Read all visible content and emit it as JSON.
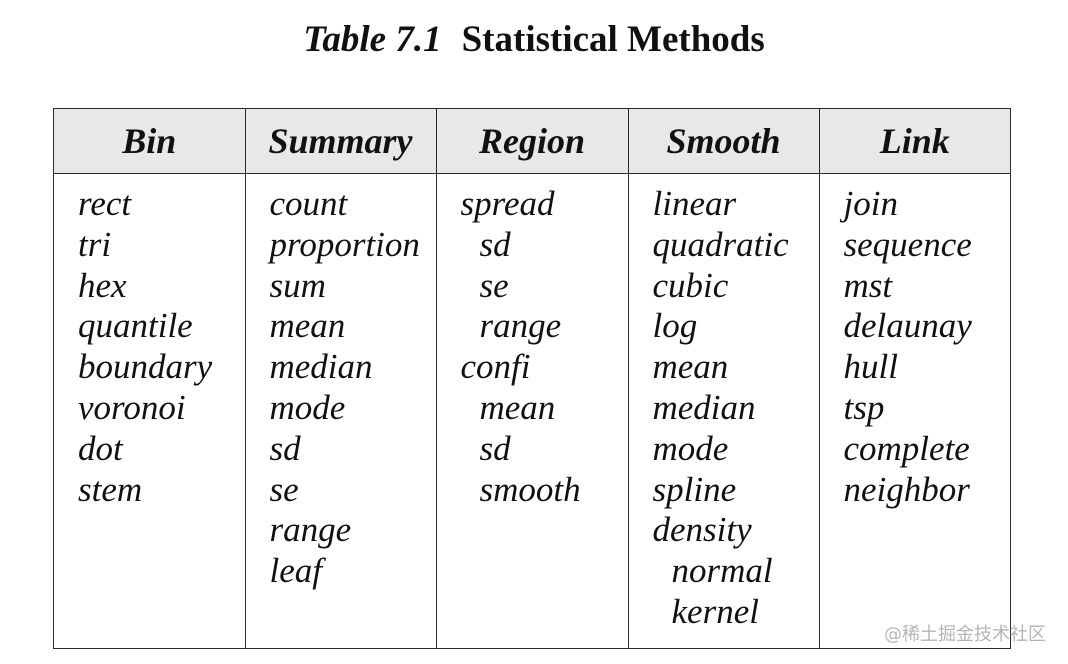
{
  "caption": {
    "number": "Table 7.1",
    "title": "Statistical Methods"
  },
  "columns": [
    {
      "header": "Bin",
      "items": [
        {
          "text": "rect",
          "indent": false
        },
        {
          "text": "tri",
          "indent": false
        },
        {
          "text": "hex",
          "indent": false
        },
        {
          "text": "quantile",
          "indent": false
        },
        {
          "text": "boundary",
          "indent": false
        },
        {
          "text": "voronoi",
          "indent": false
        },
        {
          "text": "dot",
          "indent": false
        },
        {
          "text": "stem",
          "indent": false
        }
      ]
    },
    {
      "header": "Summary",
      "items": [
        {
          "text": "count",
          "indent": false
        },
        {
          "text": "proportion",
          "indent": false
        },
        {
          "text": "sum",
          "indent": false
        },
        {
          "text": "mean",
          "indent": false
        },
        {
          "text": "median",
          "indent": false
        },
        {
          "text": "mode",
          "indent": false
        },
        {
          "text": "sd",
          "indent": false
        },
        {
          "text": "se",
          "indent": false
        },
        {
          "text": "range",
          "indent": false
        },
        {
          "text": "leaf",
          "indent": false
        }
      ]
    },
    {
      "header": "Region",
      "items": [
        {
          "text": "spread",
          "indent": false
        },
        {
          "text": "sd",
          "indent": true
        },
        {
          "text": "se",
          "indent": true
        },
        {
          "text": "range",
          "indent": true
        },
        {
          "text": "confi",
          "indent": false
        },
        {
          "text": "mean",
          "indent": true
        },
        {
          "text": "sd",
          "indent": true
        },
        {
          "text": "smooth",
          "indent": true
        }
      ]
    },
    {
      "header": "Smooth",
      "items": [
        {
          "text": "linear",
          "indent": false
        },
        {
          "text": "quadratic",
          "indent": false
        },
        {
          "text": "cubic",
          "indent": false
        },
        {
          "text": "log",
          "indent": false
        },
        {
          "text": "mean",
          "indent": false
        },
        {
          "text": "median",
          "indent": false
        },
        {
          "text": "mode",
          "indent": false
        },
        {
          "text": "spline",
          "indent": false
        },
        {
          "text": "density",
          "indent": false
        },
        {
          "text": "normal",
          "indent": true
        },
        {
          "text": "kernel",
          "indent": true
        }
      ]
    },
    {
      "header": "Link",
      "items": [
        {
          "text": "join",
          "indent": false
        },
        {
          "text": "sequence",
          "indent": false
        },
        {
          "text": "mst",
          "indent": false
        },
        {
          "text": "delaunay",
          "indent": false
        },
        {
          "text": "hull",
          "indent": false
        },
        {
          "text": "tsp",
          "indent": false
        },
        {
          "text": "complete",
          "indent": false
        },
        {
          "text": "neighbor",
          "indent": false
        }
      ]
    }
  ],
  "watermark": "@稀土掘金技术社区"
}
